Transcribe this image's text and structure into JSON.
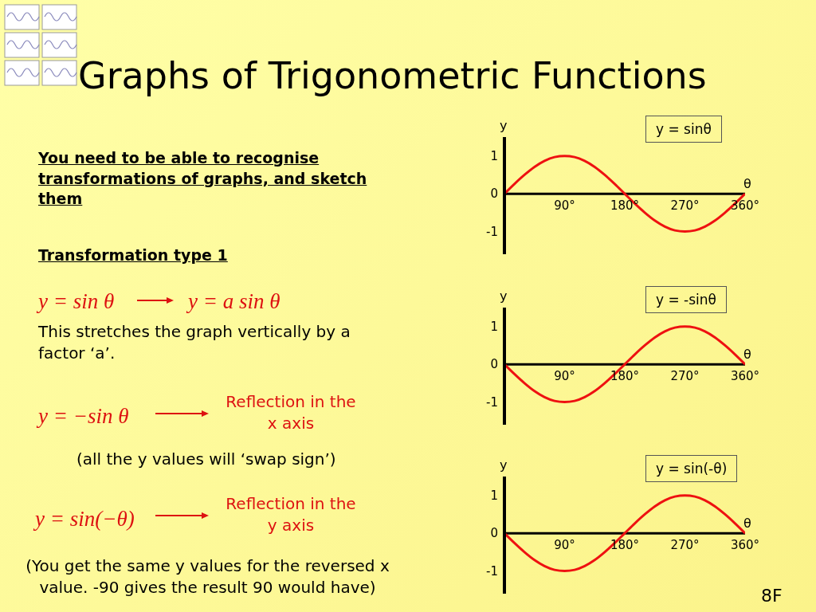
{
  "chart_data": [
    {
      "type": "other",
      "title": "Graphs of Trigonometric Functions",
      "annotations": [
        "You need to be able to recognise transformations of graphs, and sketch them",
        "Transformation type 1",
        "y = sin θ",
        "y = a sin θ",
        "This stretches the graph vertically by a factor ‘a’.",
        "y = −sin θ",
        "Reflection in the x axis",
        "(all the y values will ‘swap sign’)",
        "y = sin(−θ)",
        "Reflection in the y axis",
        "(You get the same y values for the reversed x value. -90 gives the result 90 would have)",
        "8F"
      ]
    },
    {
      "type": "line",
      "title": "y = sinθ",
      "xlabel": "θ",
      "ylabel": "y",
      "x": [
        0,
        15,
        30,
        45,
        60,
        75,
        90,
        105,
        120,
        135,
        150,
        165,
        180,
        195,
        210,
        225,
        240,
        255,
        270,
        285,
        300,
        315,
        330,
        345,
        360
      ],
      "series": [
        {
          "color": "#ee1111",
          "values": [
            0,
            0.26,
            0.5,
            0.71,
            0.87,
            0.97,
            1,
            0.97,
            0.87,
            0.71,
            0.5,
            0.26,
            0,
            -0.26,
            -0.5,
            -0.71,
            -0.87,
            -0.97,
            -1,
            -0.97,
            -0.87,
            -0.71,
            -0.5,
            -0.26,
            0
          ]
        }
      ],
      "xlim": [
        0,
        360
      ],
      "xticks": [
        {
          "value": 90,
          "label": "90°"
        },
        {
          "value": 180,
          "label": "180°"
        },
        {
          "value": 270,
          "label": "270°"
        },
        {
          "value": 360,
          "label": "360°"
        }
      ],
      "ylim": [
        -1.6,
        1.5
      ],
      "yticks": [
        -1,
        0,
        1
      ],
      "grid": false,
      "legend": false,
      "marker": "none"
    },
    {
      "type": "line",
      "title": "y = -sinθ",
      "xlabel": "θ",
      "ylabel": "y",
      "x": [
        0,
        15,
        30,
        45,
        60,
        75,
        90,
        105,
        120,
        135,
        150,
        165,
        180,
        195,
        210,
        225,
        240,
        255,
        270,
        285,
        300,
        315,
        330,
        345,
        360
      ],
      "series": [
        {
          "color": "#ee1111",
          "values": [
            0,
            -0.26,
            -0.5,
            -0.71,
            -0.87,
            -0.97,
            -1,
            -0.97,
            -0.87,
            -0.71,
            -0.5,
            -0.26,
            0,
            0.26,
            0.5,
            0.71,
            0.87,
            0.97,
            1,
            0.97,
            0.87,
            0.71,
            0.5,
            0.26,
            0
          ]
        }
      ],
      "xlim": [
        0,
        360
      ],
      "xticks": [
        {
          "value": 90,
          "label": "90°"
        },
        {
          "value": 180,
          "label": "180°"
        },
        {
          "value": 270,
          "label": "270°"
        },
        {
          "value": 360,
          "label": "360°"
        }
      ],
      "ylim": [
        -1.6,
        1.5
      ],
      "yticks": [
        -1,
        0,
        1
      ],
      "grid": false,
      "legend": false,
      "marker": "none"
    },
    {
      "type": "line",
      "title": "y = sin(-θ)",
      "xlabel": "θ",
      "ylabel": "y",
      "x": [
        0,
        15,
        30,
        45,
        60,
        75,
        90,
        105,
        120,
        135,
        150,
        165,
        180,
        195,
        210,
        225,
        240,
        255,
        270,
        285,
        300,
        315,
        330,
        345,
        360
      ],
      "series": [
        {
          "color": "#ee1111",
          "values": [
            0,
            -0.26,
            -0.5,
            -0.71,
            -0.87,
            -0.97,
            -1,
            -0.97,
            -0.87,
            -0.71,
            -0.5,
            -0.26,
            0,
            0.26,
            0.5,
            0.71,
            0.87,
            0.97,
            1,
            0.97,
            0.87,
            0.71,
            0.5,
            0.26,
            0
          ]
        }
      ],
      "xlim": [
        0,
        360
      ],
      "xticks": [
        {
          "value": 90,
          "label": "90°"
        },
        {
          "value": 180,
          "label": "180°"
        },
        {
          "value": 270,
          "label": "270°"
        },
        {
          "value": 360,
          "label": "360°"
        }
      ],
      "ylim": [
        -1.6,
        1.5
      ],
      "yticks": [
        -1,
        0,
        1
      ],
      "grid": false,
      "legend": false,
      "marker": "none"
    }
  ]
}
